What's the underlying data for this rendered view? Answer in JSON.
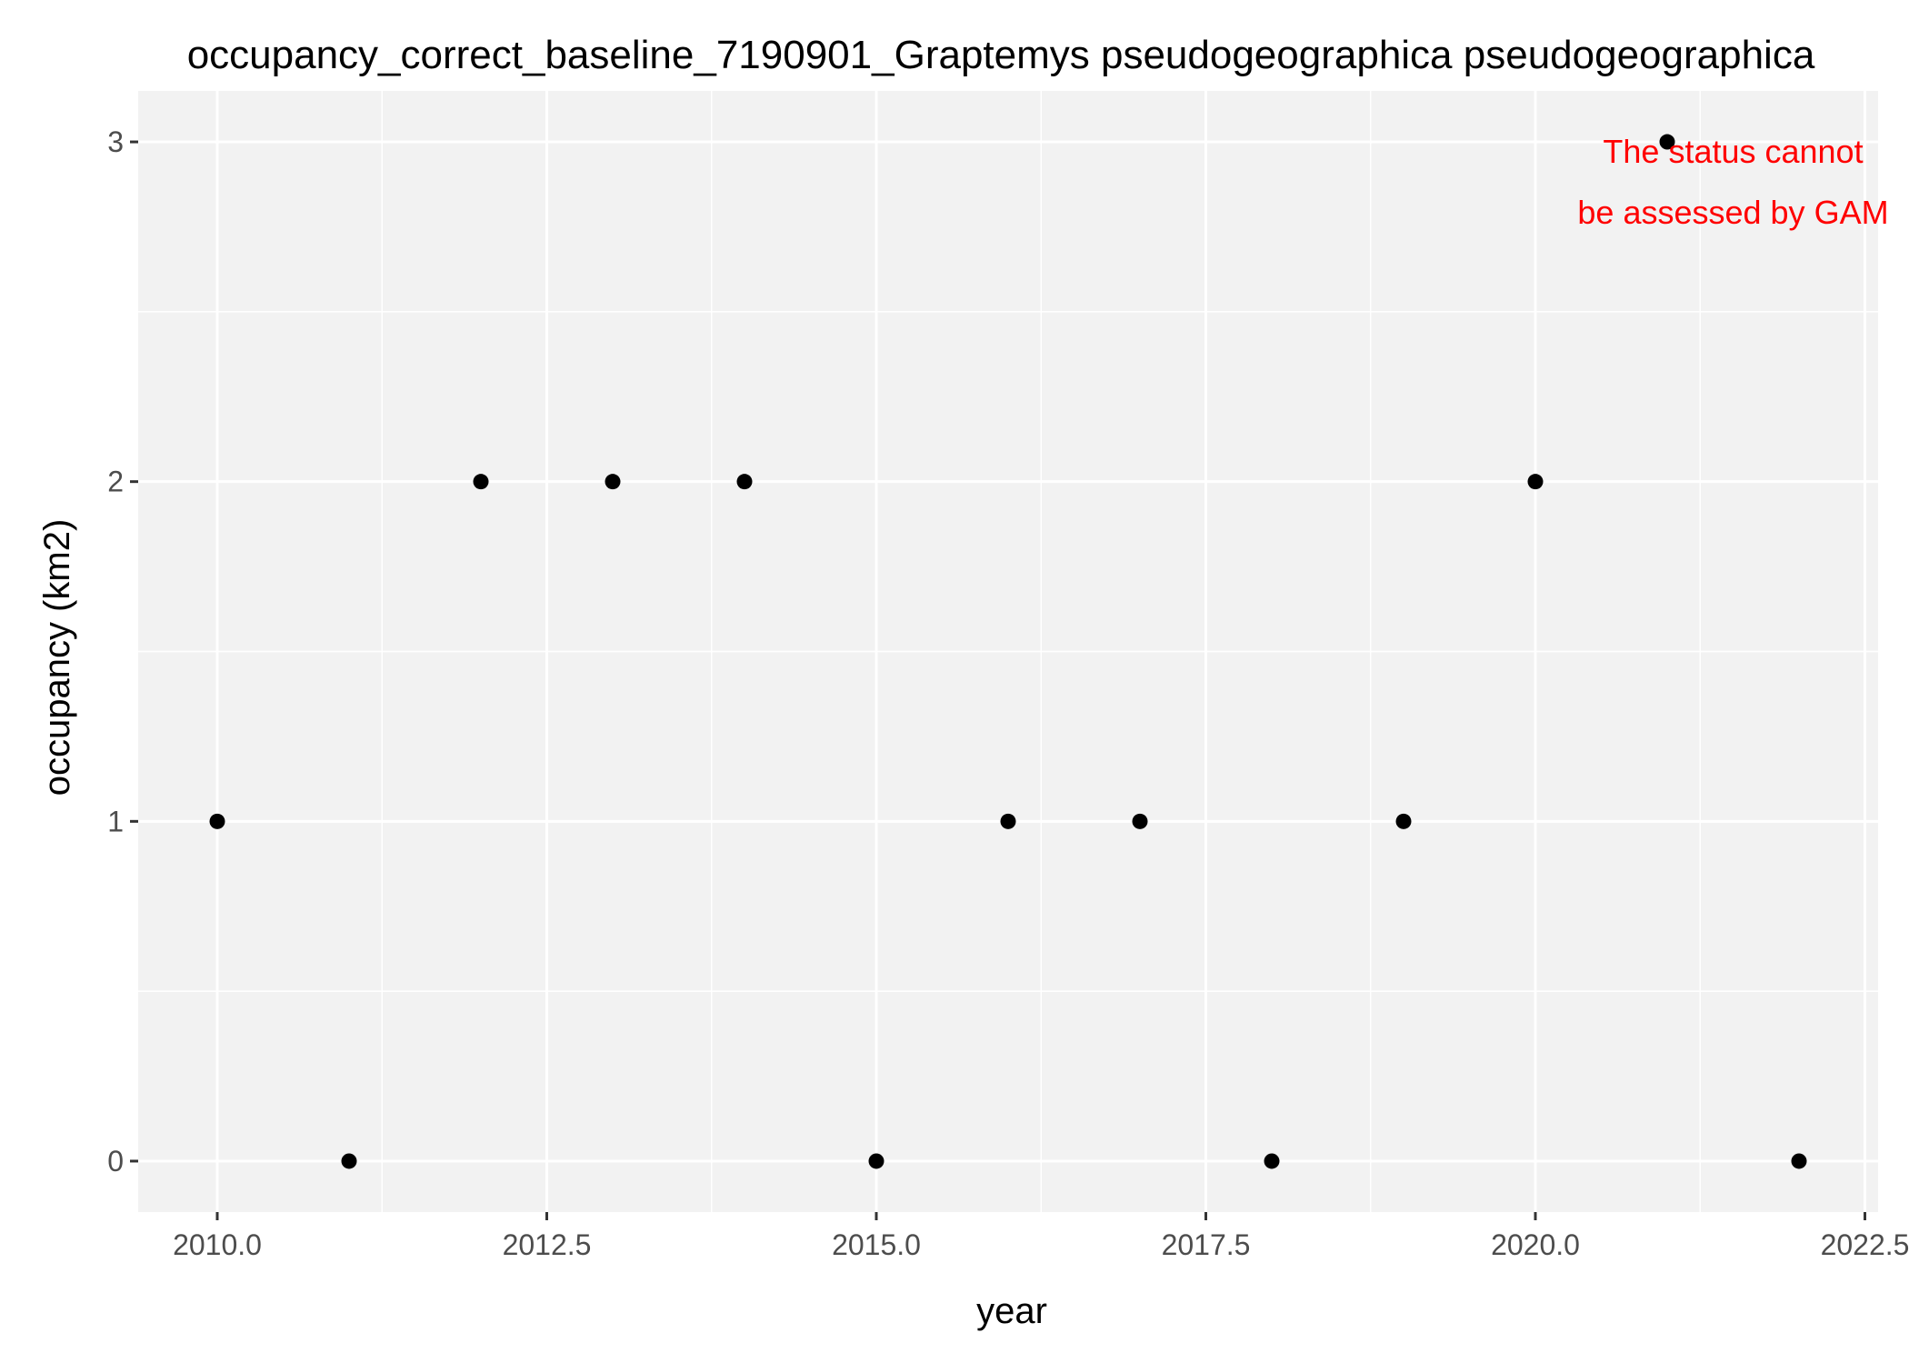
{
  "chart_data": {
    "type": "scatter",
    "title": "occupancy_correct_baseline_7190901_Graptemys pseudogeographica pseudogeographica",
    "xlabel": "year",
    "ylabel": "occupancy (km2)",
    "x": [
      2010,
      2011,
      2012,
      2013,
      2014,
      2015,
      2016,
      2017,
      2018,
      2019,
      2020,
      2021,
      2022
    ],
    "y": [
      1,
      0,
      2,
      2,
      2,
      0,
      1,
      1,
      0,
      1,
      2,
      3,
      0
    ],
    "xlim": [
      2009.4,
      2022.6
    ],
    "ylim": [
      -0.15,
      3.15
    ],
    "x_ticks": [
      2010.0,
      2012.5,
      2015.0,
      2017.5,
      2020.0,
      2022.5
    ],
    "x_tick_labels": [
      "2010.0",
      "2012.5",
      "2015.0",
      "2017.5",
      "2020.0",
      "2022.5"
    ],
    "y_ticks": [
      0,
      1,
      2,
      3
    ],
    "y_tick_labels": [
      "0",
      "1",
      "2",
      "3"
    ],
    "grid": true,
    "point_color": "#000000",
    "panel_background": "#f2f2f2",
    "annotation": {
      "lines": [
        "The status cannot",
        "be assessed by GAM"
      ],
      "color": "#ff0000",
      "x": 2021.5,
      "y": 2.85
    }
  }
}
